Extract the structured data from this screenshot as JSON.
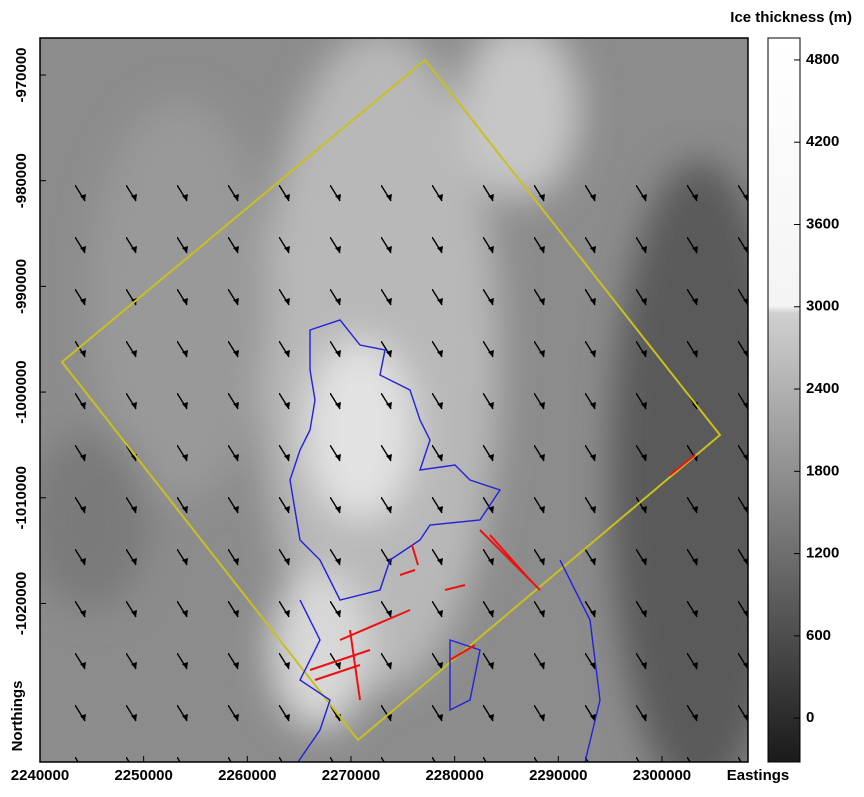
{
  "chart_data": {
    "type": "contour",
    "x_label": "Eastings",
    "y_label": "Northings",
    "colorbar_label": "Ice thickness (m)",
    "xlim": [
      2240000,
      2308300
    ],
    "xticks": [
      2240000,
      2250000,
      2260000,
      2270000,
      2280000,
      2290000,
      2300000
    ],
    "ylim": [
      -1035000,
      -966500
    ],
    "yticks": [
      -970000,
      -980000,
      -990000,
      -1000000,
      -1010000,
      -1020000
    ],
    "clim": [
      -320,
      4960
    ],
    "cticks": [
      0,
      600,
      1200,
      1800,
      2400,
      3000,
      3600,
      4200,
      4800
    ]
  }
}
